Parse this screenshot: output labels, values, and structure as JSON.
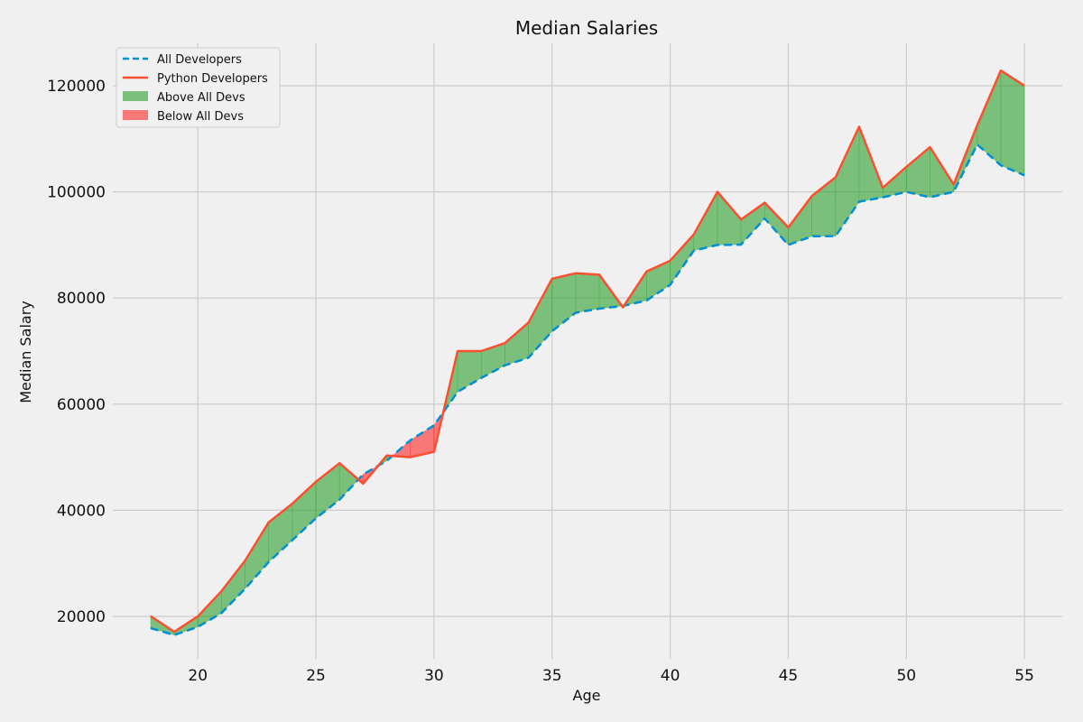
{
  "chart_data": {
    "type": "line",
    "title": "Median Salaries",
    "xlabel": "Age",
    "ylabel": "Median Salary",
    "xlim": [
      16.4,
      56.6
    ],
    "ylim": [
      12000,
      128000
    ],
    "xticks": [
      20,
      25,
      30,
      35,
      40,
      45,
      50,
      55
    ],
    "yticks": [
      20000,
      40000,
      60000,
      80000,
      100000,
      120000
    ],
    "grid": true,
    "legend_position": "top-left",
    "x": [
      18,
      19,
      20,
      21,
      22,
      23,
      24,
      25,
      26,
      27,
      28,
      29,
      30,
      31,
      32,
      33,
      34,
      35,
      36,
      37,
      38,
      39,
      40,
      41,
      42,
      43,
      44,
      45,
      46,
      47,
      48,
      49,
      50,
      51,
      52,
      53,
      54,
      55
    ],
    "series": [
      {
        "name": "All Developers",
        "style": "dashed",
        "color": "#008fd5",
        "values": [
          17784,
          16500,
          18012,
          20628,
          25206,
          30252,
          34368,
          38496,
          42000,
          46752,
          49320,
          53200,
          56000,
          62316,
          64928,
          67317,
          68748,
          73752,
          77232,
          78000,
          78508,
          79536,
          82488,
          88935,
          90000,
          90056,
          95000,
          90000,
          91633,
          91660,
          98150,
          98964,
          100000,
          98988,
          100000,
          108923,
          105000,
          103117
        ]
      },
      {
        "name": "Python Developers",
        "style": "solid",
        "color": "#fc4f30",
        "values": [
          20046,
          17100,
          20000,
          24744,
          30500,
          37732,
          41247,
          45372,
          48876,
          45000,
          50320,
          50000,
          51000,
          70000,
          70000,
          71496,
          75370,
          83640,
          84666,
          84392,
          78254,
          85000,
          87038,
          91991,
          100000,
          94796,
          97962,
          93302,
          99240,
          102736,
          112285,
          100771,
          104708,
          108423,
          101407,
          112542,
          122870,
          120000
        ]
      }
    ],
    "fills": [
      {
        "name": "Above All Devs",
        "color": "#2ca02c",
        "opacity": 0.6
      },
      {
        "name": "Below All Devs",
        "color": "#ff0000",
        "opacity": 0.5
      }
    ]
  }
}
